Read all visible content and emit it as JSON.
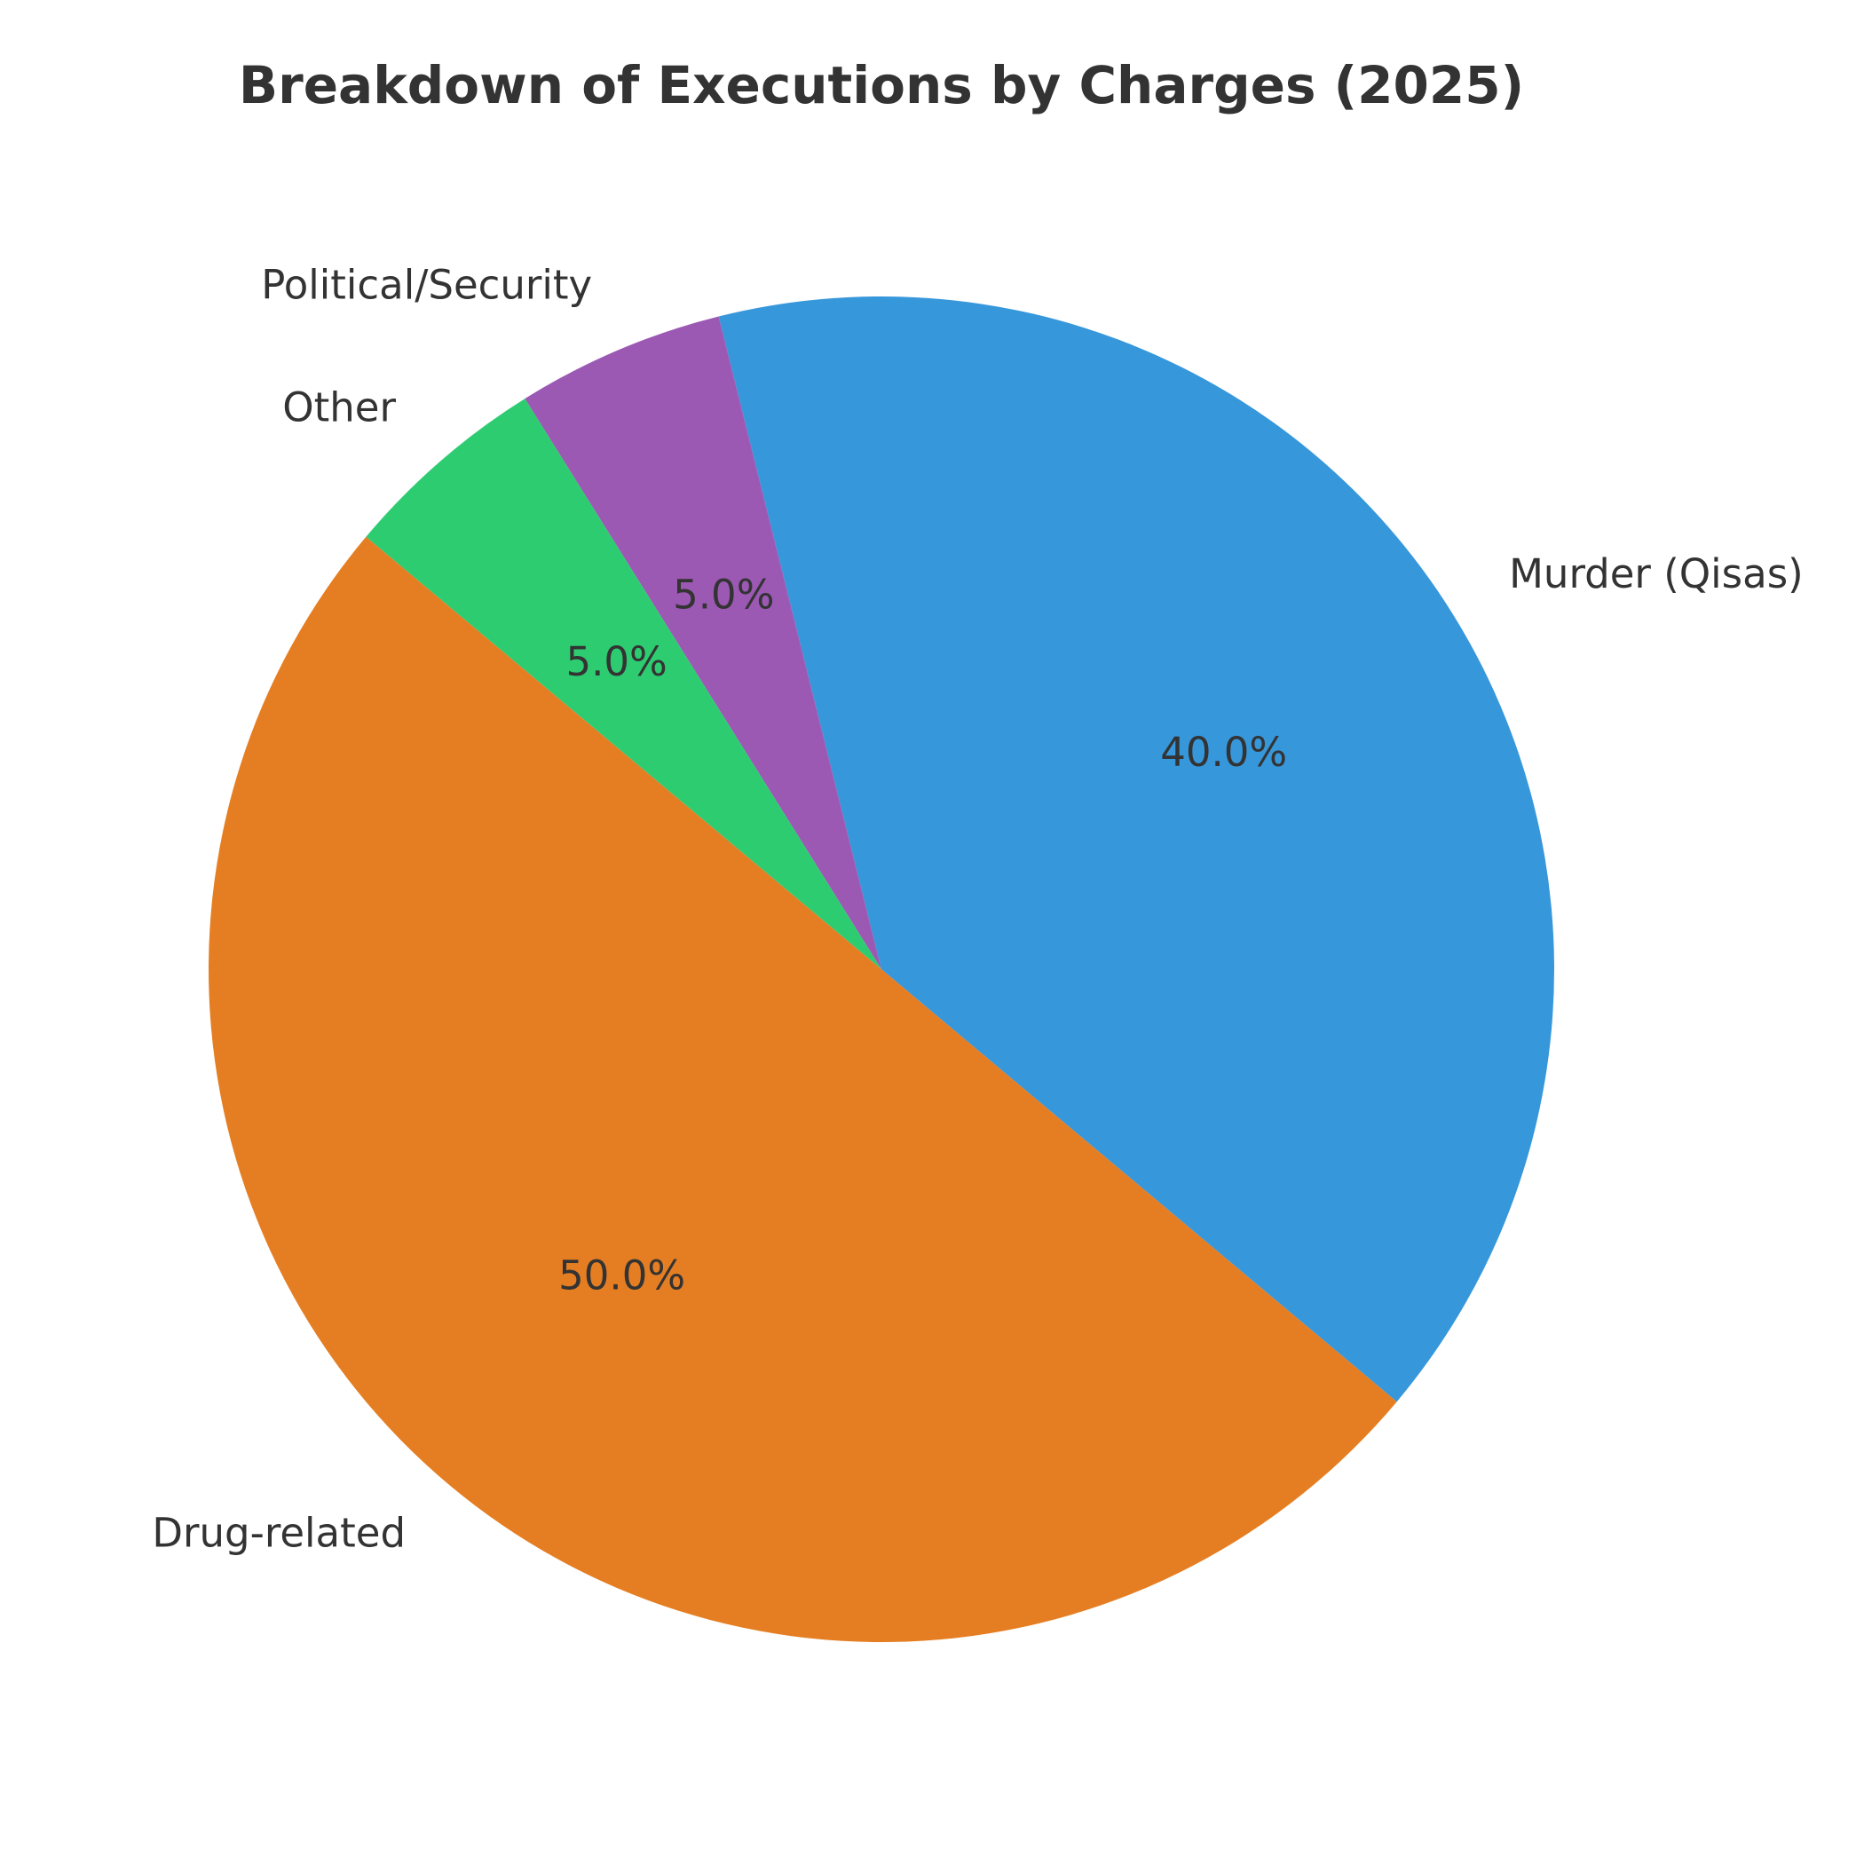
{
  "chart_data": {
    "type": "pie",
    "title": "Breakdown of Executions by Charges (2025)",
    "slices": [
      {
        "label": "Murder (Qisas)",
        "value": 40.0,
        "pct_label": "40.0%",
        "color": "#3797DB"
      },
      {
        "label": "Political/Security",
        "value": 5.0,
        "pct_label": "5.0%",
        "color": "#9B59B3"
      },
      {
        "label": "Other",
        "value": 5.0,
        "pct_label": "5.0%",
        "color": "#2ECC71"
      },
      {
        "label": "Drug-related",
        "value": 50.0,
        "pct_label": "50.0%",
        "color": "#E57E22"
      }
    ],
    "start_angle_deg": -40,
    "direction": "counterclockwise",
    "text_color": "#333333"
  }
}
